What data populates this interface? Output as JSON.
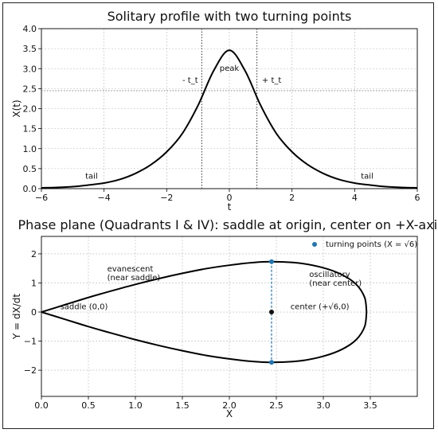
{
  "chart_data": [
    {
      "type": "line",
      "title": "Solitary profile with two turning points",
      "xlabel": "t",
      "ylabel": "X(t)",
      "xlim": [
        -6,
        6
      ],
      "ylim": [
        0,
        4.0
      ],
      "xticks": [
        -6,
        -4,
        -2,
        0,
        2,
        4,
        6
      ],
      "xtick_labels": [
        "−6",
        "−4",
        "−2",
        "0",
        "2",
        "4",
        "6"
      ],
      "yticks": [
        0.0,
        0.5,
        1.0,
        1.5,
        2.0,
        2.5,
        3.0,
        3.5,
        4.0
      ],
      "ytick_labels": [
        "0.0",
        "0.5",
        "1.0",
        "1.5",
        "2.0",
        "2.5",
        "3.0",
        "3.5",
        "4.0"
      ],
      "grid": true,
      "series": [
        {
          "x": [
            -6,
            -5.5,
            -5,
            -4.5,
            -4,
            -3.5,
            -3,
            -2.5,
            -2,
            -1.5,
            -1,
            -0.5,
            0,
            0.5,
            1,
            1.5,
            2,
            2.5,
            3,
            3.5,
            4,
            4.5,
            5,
            5.5,
            6
          ],
          "y": [
            0.02,
            0.03,
            0.05,
            0.09,
            0.14,
            0.23,
            0.38,
            0.6,
            0.92,
            1.38,
            2.08,
            2.95,
            3.46,
            2.95,
            2.08,
            1.38,
            0.92,
            0.6,
            0.38,
            0.23,
            0.14,
            0.09,
            0.05,
            0.03,
            0.02
          ]
        }
      ],
      "turning_points_t": [
        -0.88,
        0.88
      ],
      "turning_level": 2.45,
      "annotations": [
        {
          "text": "peak",
          "x": 0.0,
          "y": 2.95
        },
        {
          "text": "- t_t",
          "x": -1.25,
          "y": 2.65
        },
        {
          "text": "+ t_t",
          "x": 1.35,
          "y": 2.65
        },
        {
          "text": "tail",
          "x": -4.4,
          "y": 0.25
        },
        {
          "text": "tail",
          "x": 4.4,
          "y": 0.25
        }
      ]
    },
    {
      "type": "line",
      "title": "Phase plane (Quadrants I & IV): saddle at origin, center on +X-axis",
      "xlabel": "X",
      "ylabel": "Y = dX/dt",
      "xlim": [
        0.0,
        4.0
      ],
      "ylim": [
        -2.9,
        2.6
      ],
      "xticks": [
        0.0,
        0.5,
        1.0,
        1.5,
        2.0,
        2.5,
        3.0,
        3.5
      ],
      "xtick_labels": [
        "0.0",
        "0.5",
        "1.0",
        "1.5",
        "2.0",
        "2.5",
        "3.0",
        "3.5"
      ],
      "yticks": [
        -2,
        -1,
        0,
        1,
        2
      ],
      "ytick_labels": [
        "−2",
        "−1",
        "0",
        "1",
        "2"
      ],
      "grid": true,
      "legend": {
        "position": "top-right",
        "label": "turning points (X = √6)"
      },
      "separatrix": {
        "x": [
          0.0,
          0.25,
          0.5,
          0.75,
          1.0,
          1.25,
          1.5,
          1.75,
          2.0,
          2.25,
          2.45,
          2.75,
          3.0,
          3.2,
          3.35,
          3.44,
          3.46
        ],
        "y_upper": [
          0.0,
          0.25,
          0.5,
          0.73,
          0.95,
          1.15,
          1.33,
          1.49,
          1.61,
          1.7,
          1.73,
          1.68,
          1.52,
          1.28,
          0.95,
          0.5,
          0.0
        ]
      },
      "turning_points": [
        {
          "x": 2.449,
          "y": 1.73
        },
        {
          "x": 2.449,
          "y": -1.73
        }
      ],
      "center": {
        "x": 2.449,
        "y": 0.0
      },
      "annotations": [
        {
          "text": "saddle (0,0)",
          "x": 0.2,
          "y": 0.1
        },
        {
          "text": "evanescent",
          "x": 0.7,
          "y": 1.4
        },
        {
          "text": "(near saddle)",
          "x": 0.7,
          "y": 1.1
        },
        {
          "text": "center (+√6,0)",
          "x": 2.65,
          "y": 0.1
        },
        {
          "text": "oscillatory",
          "x": 2.85,
          "y": 1.2
        },
        {
          "text": "(near center)",
          "x": 2.85,
          "y": 0.9
        }
      ]
    }
  ]
}
